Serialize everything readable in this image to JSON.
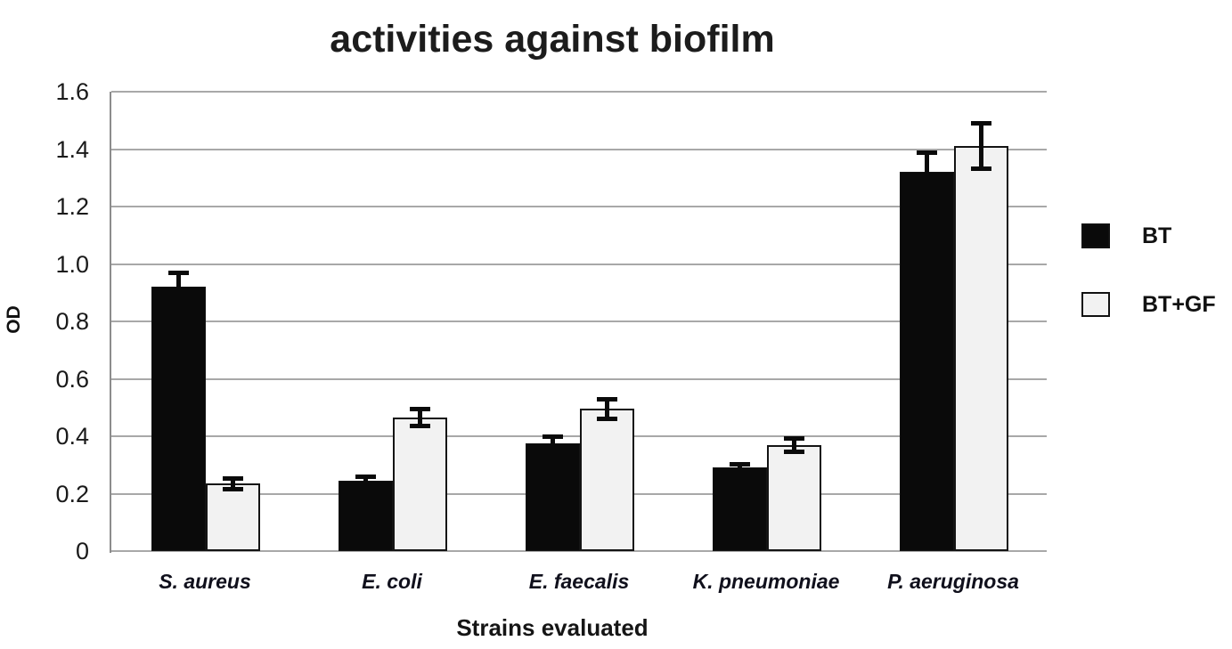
{
  "chart_data": {
    "type": "bar",
    "title": "activities against biofilm",
    "xlabel": "Strains evaluated",
    "ylabel": "OD",
    "categories": [
      "S. aureus",
      "E. coli",
      "E. faecalis",
      "K. pneumoniae",
      "P. aeruginosa"
    ],
    "series": [
      {
        "name": "BT",
        "color": "#0a0a0a",
        "values": [
          0.92,
          0.245,
          0.375,
          0.29,
          1.32
        ],
        "errors": [
          0.05,
          0.015,
          0.025,
          0.015,
          0.07
        ]
      },
      {
        "name": "BT+GF",
        "color": "#f2f2f2",
        "values": [
          0.235,
          0.465,
          0.495,
          0.37,
          1.41
        ],
        "errors": [
          0.02,
          0.03,
          0.035,
          0.025,
          0.08
        ]
      }
    ],
    "ylim": [
      0,
      1.6
    ],
    "ytick_step": 0.2,
    "ytick_labels": [
      "0",
      "0.2",
      "0.4",
      "0.6",
      "0.8",
      "1.0",
      "1.2",
      "1.4",
      "1.6"
    ],
    "grid": "horizontal-every-0.2",
    "legend_position": "right",
    "error_bars": true,
    "colors": {
      "grid": "#a8a8a8",
      "axis": "#8c8c8c",
      "text": "#1a1a1a",
      "bar_border": "#141414"
    }
  }
}
